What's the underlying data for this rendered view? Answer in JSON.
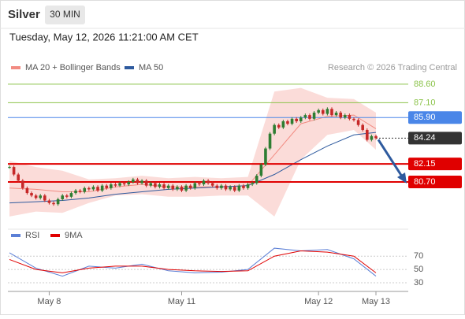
{
  "header": {
    "title": "Silver",
    "interval": "30 MIN",
    "timestamp": "Tuesday, May 12, 2026 11:21:00 AM CET"
  },
  "chart_data": [
    {
      "type": "candlestick",
      "attribution": "Research © 2026 Trading Central",
      "categories": [
        null,
        null,
        null,
        null,
        null,
        null,
        null,
        null,
        null,
        "May 8",
        null,
        null,
        null,
        null,
        null,
        null,
        null,
        null,
        null,
        null,
        null,
        null,
        null,
        null,
        null,
        null,
        null,
        null,
        null,
        null,
        null,
        null,
        null,
        null,
        null,
        null,
        null,
        null,
        null,
        "May 11",
        null,
        null,
        null,
        null,
        null,
        null,
        null,
        null,
        null,
        null,
        null,
        null,
        null,
        null,
        null,
        null,
        null,
        null,
        null,
        null,
        null,
        null,
        null,
        null,
        null,
        null,
        null,
        null,
        null,
        null,
        "May 12",
        null,
        null,
        null,
        null,
        null,
        null,
        null,
        null,
        null,
        null,
        null,
        null,
        "May 13"
      ],
      "values": [
        81.9,
        81.3,
        80.8,
        80.2,
        79.8,
        79.6,
        79.4,
        79.6,
        79.2,
        79.0,
        78.9,
        79.3,
        79.6,
        79.5,
        79.8,
        80.0,
        79.9,
        80.2,
        80.1,
        80.3,
        80.0,
        80.4,
        80.2,
        80.5,
        80.4,
        80.6,
        80.5,
        80.7,
        80.9,
        80.6,
        80.8,
        80.4,
        80.6,
        80.3,
        80.5,
        80.2,
        80.4,
        80.1,
        80.3,
        80.0,
        80.4,
        80.2,
        80.6,
        80.5,
        80.8,
        80.6,
        80.4,
        80.2,
        80.4,
        80.1,
        80.3,
        80.0,
        80.4,
        80.2,
        80.5,
        80.6,
        81.2,
        82.1,
        83.4,
        84.6,
        85.3,
        85.1,
        85.6,
        85.4,
        85.8,
        85.6,
        85.9,
        86.1,
        85.8,
        86.3,
        86.5,
        86.2,
        86.6,
        86.1,
        86.3,
        85.9,
        86.1,
        85.8,
        85.7,
        85.3,
        84.9,
        84.1,
        84.4,
        84.24
      ],
      "up_color": "#2e7d32",
      "down_color": "#c62828",
      "ylim": [
        77.45,
        89.8
      ],
      "overlays": [
        {
          "name": "MA 20 + Bollinger Bands",
          "color": "#f28b82",
          "x": [
            0,
            6,
            12,
            18,
            24,
            30,
            36,
            42,
            48,
            54,
            60,
            66,
            72,
            78,
            83
          ],
          "values": [
            80.2,
            80.1,
            79.9,
            79.9,
            80.3,
            80.5,
            80.3,
            80.3,
            80.3,
            80.4,
            82.9,
            85.4,
            86.0,
            86.1,
            85.0
          ],
          "upper": [
            82.4,
            81.9,
            81.6,
            80.9,
            81.0,
            81.2,
            81.0,
            81.1,
            81.0,
            81.1,
            88.0,
            88.3,
            87.5,
            87.4,
            86.3
          ],
          "lower": [
            77.9,
            78.3,
            78.2,
            79.0,
            79.6,
            79.7,
            79.5,
            79.5,
            79.6,
            79.6,
            77.9,
            82.5,
            84.5,
            84.9,
            83.3
          ]
        },
        {
          "name": "MA 50",
          "color": "#2e5a9e",
          "x": [
            0,
            6,
            12,
            18,
            24,
            30,
            36,
            42,
            48,
            54,
            60,
            66,
            72,
            78,
            83
          ],
          "values": [
            79.0,
            79.1,
            79.2,
            79.4,
            79.7,
            79.9,
            80.1,
            80.2,
            80.3,
            80.4,
            81.3,
            82.5,
            83.6,
            84.5,
            84.7
          ]
        }
      ],
      "levels": [
        {
          "value": 88.6,
          "label": "88.60",
          "color": "#8bc34a",
          "boxed": false
        },
        {
          "value": 87.1,
          "label": "87.10",
          "color": "#8bc34a",
          "boxed": false
        },
        {
          "value": 85.9,
          "label": "85.90",
          "color": "#4a86e8",
          "boxed": true
        },
        {
          "value": 84.24,
          "color": "#333333",
          "boxed": true
        },
        {
          "value": 82.15,
          "color": "#e00000",
          "boxed": true
        },
        {
          "value": 80.7,
          "label": "80.70",
          "color": "#e00000",
          "boxed": true
        }
      ]
    },
    {
      "type": "line",
      "ylim": [
        17,
        88
      ],
      "yticks": [
        70,
        50,
        30
      ],
      "series": [
        {
          "name": "RSI",
          "color": "#5b7fd6",
          "x": [
            0,
            6,
            12,
            18,
            24,
            30,
            36,
            42,
            48,
            54,
            60,
            66,
            72,
            78,
            83
          ],
          "values": [
            75,
            52,
            40,
            55,
            52,
            58,
            48,
            45,
            46,
            50,
            82,
            78,
            80,
            66,
            40
          ]
        },
        {
          "name": "9MA",
          "color": "#e00000",
          "x": [
            0,
            6,
            12,
            18,
            24,
            30,
            36,
            42,
            48,
            54,
            60,
            66,
            72,
            78,
            83
          ],
          "values": [
            65,
            50,
            45,
            52,
            55,
            55,
            50,
            48,
            47,
            48,
            70,
            78,
            76,
            70,
            45
          ]
        }
      ]
    }
  ]
}
